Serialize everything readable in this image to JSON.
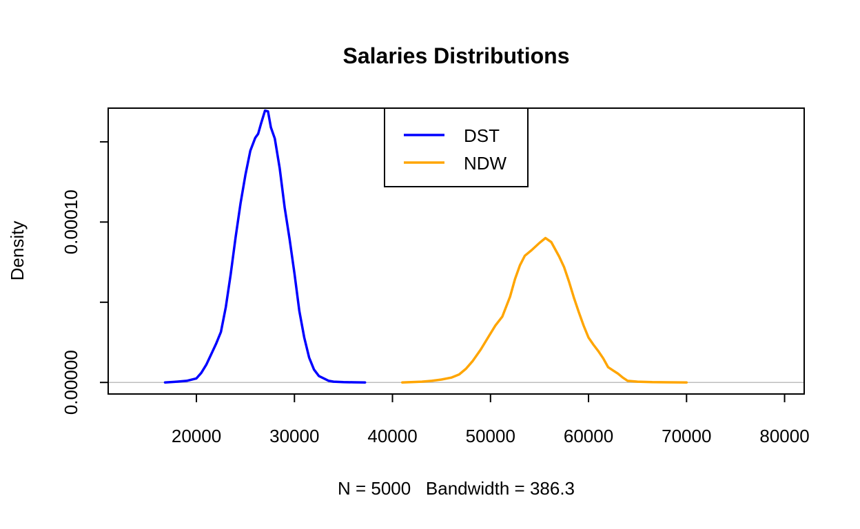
{
  "chart_data": {
    "type": "line",
    "title": "Salaries Distributions",
    "xlabel": "N = 5000   Bandwidth = 386.3",
    "ylabel": "Density",
    "xlim": [
      11000,
      82000
    ],
    "ylim": [
      -7.2e-06,
      0.000171
    ],
    "x_ticks": [
      20000,
      30000,
      40000,
      50000,
      60000,
      70000,
      80000
    ],
    "x_tick_labels": [
      "20000",
      "30000",
      "40000",
      "50000",
      "60000",
      "70000",
      "80000"
    ],
    "y_ticks": [
      0,
      5e-05,
      0.0001,
      0.00015
    ],
    "y_tick_labels": [
      "0.00000",
      "",
      "0.00010",
      ""
    ],
    "baseline": 0,
    "baseline_color": "#bebebe",
    "legend": {
      "position": "top-center"
    },
    "series": [
      {
        "name": "DST",
        "color": "#0000ff",
        "x": [
          16800,
          18000,
          19000,
          20000,
          20500,
          21000,
          21500,
          22000,
          22500,
          23000,
          23500,
          24000,
          24500,
          25000,
          25500,
          26000,
          26300,
          26600,
          27000,
          27300,
          27600,
          28000,
          28500,
          29000,
          29500,
          30000,
          30500,
          31000,
          31500,
          32000,
          32500,
          33000,
          33500,
          34000,
          35000,
          36000,
          37200
        ],
        "y": [
          0,
          5e-07,
          1e-06,
          2.5e-06,
          6e-06,
          1.1e-05,
          1.75e-05,
          2.4e-05,
          3.15e-05,
          4.7e-05,
          6.75e-05,
          9.05e-05,
          0.0001115,
          0.0001295,
          0.0001445,
          0.0001525,
          0.000155,
          0.0001615,
          0.0001695,
          0.000169,
          0.000159,
          0.000152,
          0.0001335,
          0.000109,
          8.95e-05,
          6.8e-05,
          4.45e-05,
          2.8e-05,
          1.55e-05,
          8e-06,
          4e-06,
          2.5e-06,
          1e-06,
          5e-07,
          2e-07,
          1e-07,
          0
        ]
      },
      {
        "name": "NDW",
        "color": "#ffa500",
        "x": [
          41000,
          43000,
          44000,
          45000,
          46000,
          46800,
          47500,
          48200,
          49000,
          49800,
          50500,
          51200,
          52000,
          52500,
          53000,
          53500,
          54200,
          55000,
          55600,
          56200,
          57000,
          57500,
          58000,
          58500,
          59000,
          59500,
          60000,
          60500,
          61000,
          61500,
          62000,
          62500,
          63000,
          63500,
          64000,
          65000,
          66500,
          68000,
          70000
        ],
        "y": [
          0,
          5e-07,
          1e-06,
          1.8e-06,
          3e-06,
          5e-06,
          8.5e-06,
          1.35e-05,
          2.05e-05,
          2.85e-05,
          3.55e-05,
          4.1e-05,
          5.35e-05,
          6.45e-05,
          7.3e-05,
          7.9e-05,
          8.25e-05,
          8.7e-05,
          9e-05,
          8.75e-05,
          7.85e-05,
          7.2e-05,
          6.3e-05,
          5.3e-05,
          4.4e-05,
          3.55e-05,
          2.8e-05,
          2.35e-05,
          1.95e-05,
          1.5e-05,
          9.5e-06,
          7.5e-06,
          5.5e-06,
          3e-06,
          1e-06,
          5e-07,
          2e-07,
          1e-07,
          0
        ]
      }
    ]
  }
}
